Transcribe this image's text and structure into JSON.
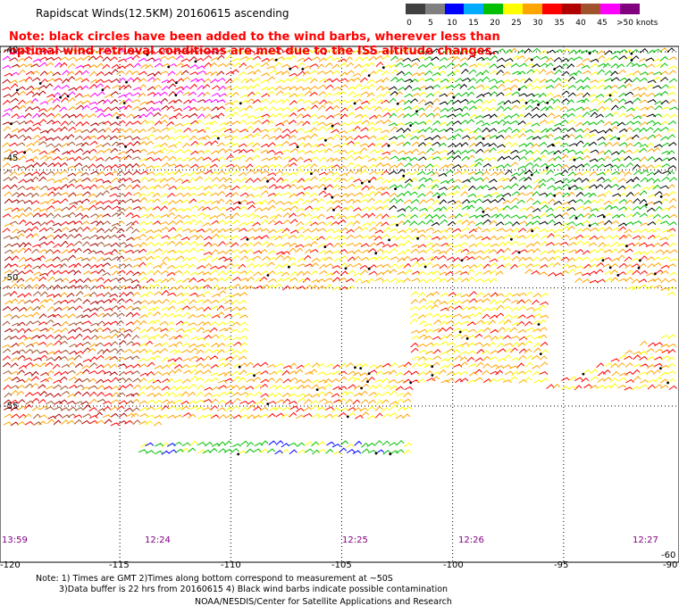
{
  "header": {
    "title": "Rapidscat Winds(12.5KM) 20160615 ascending",
    "note_line1": "Note: black circles have been added to the wind barbs, wherever less than",
    "note_line2": "optimal wind retrieval conditions are met due to the ISS altitude changes."
  },
  "color_scale": {
    "labels": [
      "0",
      "5",
      "10",
      "15",
      "20",
      "25",
      "30",
      "35",
      "40",
      "45",
      ">50 knots"
    ],
    "colors": [
      "#404040",
      "#808080",
      "#0000ff",
      "#00aaff",
      "#00c000",
      "#ffff00",
      "#ffa500",
      "#ff0000",
      "#b00000",
      "#a0522d",
      "#ff00ff",
      "#800080"
    ]
  },
  "map": {
    "lat_labels": [
      "-40",
      "-45",
      "-50",
      "-55",
      "-60"
    ],
    "lon_labels": [
      "-120",
      "-115",
      "-110",
      "-105",
      "-100",
      "-95",
      "-90"
    ],
    "time_labels": [
      "13:59",
      "12:24",
      "12:25",
      "12:26",
      "12:27"
    ]
  },
  "footer": {
    "line1": "Note: 1) Times are GMT 2)Times along bottom correspond to measurement at ~50S",
    "line2": "3)Data buffer is 22 hrs from 20160615 4) Black wind barbs indicate possible contamination",
    "line3": "NOAA/NESDIS/Center for Satellite Applications and Research"
  }
}
